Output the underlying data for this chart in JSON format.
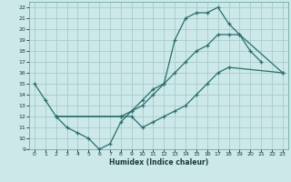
{
  "xlabel": "Humidex (Indice chaleur)",
  "bg_color": "#cce8e8",
  "grid_color": "#a8cccc",
  "line_color": "#2a6e6e",
  "xlim": [
    -0.5,
    23.5
  ],
  "ylim": [
    9,
    22.5
  ],
  "yticks": [
    9,
    10,
    11,
    12,
    13,
    14,
    15,
    16,
    17,
    18,
    19,
    20,
    21,
    22
  ],
  "xticks": [
    0,
    1,
    2,
    3,
    4,
    5,
    6,
    7,
    8,
    9,
    10,
    11,
    12,
    13,
    14,
    15,
    16,
    17,
    18,
    19,
    20,
    21,
    22,
    23
  ],
  "line1": {
    "x": [
      0,
      1,
      2,
      3,
      4,
      5,
      6,
      7,
      8,
      9,
      10,
      11,
      12,
      13,
      14,
      15,
      16,
      17,
      18,
      19,
      20,
      21
    ],
    "y": [
      15.0,
      13.5,
      12.0,
      11.0,
      10.5,
      10.0,
      9.0,
      9.5,
      11.5,
      12.5,
      13.5,
      14.5,
      15.0,
      19.0,
      21.0,
      21.5,
      21.5,
      22.0,
      20.5,
      19.5,
      18.0,
      17.0
    ]
  },
  "line2": {
    "x": [
      2,
      8,
      9,
      10,
      11,
      12,
      13,
      14,
      15,
      16,
      17,
      18,
      19,
      23
    ],
    "y": [
      12.0,
      12.0,
      12.5,
      13.0,
      14.0,
      15.0,
      16.0,
      17.0,
      18.0,
      18.5,
      19.5,
      19.5,
      19.5,
      16.0
    ]
  },
  "line3": {
    "x": [
      2,
      8,
      9,
      10,
      11,
      12,
      13,
      14,
      15,
      16,
      17,
      18,
      23
    ],
    "y": [
      12.0,
      12.0,
      12.0,
      11.0,
      11.5,
      12.0,
      12.5,
      13.0,
      14.0,
      15.0,
      16.0,
      16.5,
      16.0
    ]
  }
}
